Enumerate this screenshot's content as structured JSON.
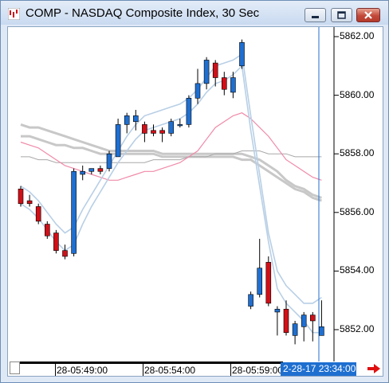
{
  "window": {
    "title": "COMP - NASDAQ Composite Index, 30 Sec",
    "buttons": {
      "minimize": "minimize-icon",
      "maximize": "maximize-icon",
      "close": "close-icon"
    }
  },
  "price_axis": {
    "labels": [
      "5862.00",
      "5860.00",
      "5858.00",
      "5856.00",
      "5854.00",
      "5852.00"
    ],
    "values": [
      5862,
      5860,
      5858,
      5856,
      5854,
      5852
    ]
  },
  "time_axis": {
    "labels": [
      "28-05:49:00",
      "28-05:54:00",
      "28-05:59:00"
    ],
    "cursor_time": "2-28-17 23:34:00"
  },
  "colors": {
    "up": "#1f6fd1",
    "down": "#d01018",
    "band": "#b8cfe6",
    "ma_pink": "#f08aa8",
    "ma_gray": "#c8c8c8",
    "cursor_line": "#1f6fd1",
    "accent_arrow": "#e01010"
  },
  "chart_data": {
    "type": "candlestick",
    "ylim": [
      5851.2,
      5862.3
    ],
    "candles": [
      {
        "o": 5856.8,
        "h": 5856.9,
        "l": 5856.2,
        "c": 5856.3
      },
      {
        "o": 5856.4,
        "h": 5856.6,
        "l": 5856.2,
        "c": 5856.3
      },
      {
        "o": 5856.2,
        "h": 5856.3,
        "l": 5855.6,
        "c": 5855.7
      },
      {
        "o": 5855.6,
        "h": 5855.7,
        "l": 5855.1,
        "c": 5855.2
      },
      {
        "o": 5855.3,
        "h": 5855.4,
        "l": 5854.6,
        "c": 5854.7
      },
      {
        "o": 5854.7,
        "h": 5854.9,
        "l": 5854.4,
        "c": 5854.5
      },
      {
        "o": 5854.6,
        "h": 5857.5,
        "l": 5854.5,
        "c": 5857.4
      },
      {
        "o": 5857.3,
        "h": 5857.6,
        "l": 5857.1,
        "c": 5857.4
      },
      {
        "o": 5857.4,
        "h": 5857.5,
        "l": 5857.3,
        "c": 5857.5
      },
      {
        "o": 5857.5,
        "h": 5857.6,
        "l": 5857.3,
        "c": 5857.4
      },
      {
        "o": 5857.5,
        "h": 5858.1,
        "l": 5857.4,
        "c": 5858.0
      },
      {
        "o": 5857.9,
        "h": 5859.2,
        "l": 5857.9,
        "c": 5859.0
      },
      {
        "o": 5859.0,
        "h": 5859.4,
        "l": 5858.7,
        "c": 5859.3
      },
      {
        "o": 5859.1,
        "h": 5859.5,
        "l": 5858.8,
        "c": 5859.3
      },
      {
        "o": 5859.0,
        "h": 5859.1,
        "l": 5858.4,
        "c": 5858.7
      },
      {
        "o": 5858.8,
        "h": 5859.0,
        "l": 5858.6,
        "c": 5858.7
      },
      {
        "o": 5858.8,
        "h": 5858.9,
        "l": 5858.4,
        "c": 5858.7
      },
      {
        "o": 5858.7,
        "h": 5859.2,
        "l": 5858.6,
        "c": 5859.1
      },
      {
        "o": 5859.0,
        "h": 5859.2,
        "l": 5858.9,
        "c": 5859.0
      },
      {
        "o": 5859.0,
        "h": 5860.0,
        "l": 5858.9,
        "c": 5859.9
      },
      {
        "o": 5859.9,
        "h": 5860.9,
        "l": 5859.7,
        "c": 5860.4
      },
      {
        "o": 5860.4,
        "h": 5861.3,
        "l": 5860.2,
        "c": 5861.2
      },
      {
        "o": 5861.1,
        "h": 5861.2,
        "l": 5860.3,
        "c": 5860.6
      },
      {
        "o": 5860.6,
        "h": 5860.8,
        "l": 5860.0,
        "c": 5860.2
      },
      {
        "o": 5860.1,
        "h": 5860.8,
        "l": 5859.9,
        "c": 5860.6
      },
      {
        "o": 5861.0,
        "h": 5861.9,
        "l": 5860.9,
        "c": 5861.8
      },
      {
        "o": 5852.8,
        "h": 5853.3,
        "l": 5852.7,
        "c": 5853.2
      },
      {
        "o": 5853.2,
        "h": 5855.1,
        "l": 5853.1,
        "c": 5854.1
      },
      {
        "o": 5854.3,
        "h": 5854.5,
        "l": 5852.8,
        "c": 5852.9
      },
      {
        "o": 5852.6,
        "h": 5852.8,
        "l": 5851.8,
        "c": 5852.7
      },
      {
        "o": 5852.7,
        "h": 5853.0,
        "l": 5851.8,
        "c": 5851.9
      },
      {
        "o": 5851.8,
        "h": 5852.3,
        "l": 5851.5,
        "c": 5852.2
      },
      {
        "o": 5852.1,
        "h": 5852.6,
        "l": 5851.6,
        "c": 5852.5
      },
      {
        "o": 5852.5,
        "h": 5852.6,
        "l": 5851.6,
        "c": 5852.3
      },
      {
        "o": 5851.8,
        "h": 5853.0,
        "l": 5851.8,
        "c": 5852.1
      }
    ],
    "bands": {
      "upper": [
        5856.9,
        5856.7,
        5856.4,
        5856.0,
        5855.6,
        5855.3,
        5855.5,
        5856.1,
        5856.6,
        5857.1,
        5857.6,
        5858.1,
        5858.6,
        5859.0,
        5859.3,
        5859.4,
        5859.5,
        5859.6,
        5859.7,
        5859.9,
        5860.2,
        5860.6,
        5861.0,
        5861.1,
        5861.2,
        5861.4,
        5859.3,
        5857.3,
        5855.3,
        5854.0,
        5853.5,
        5853.2,
        5852.9,
        5852.9,
        5853.1
      ],
      "lower": [
        5856.3,
        5856.1,
        5855.8,
        5855.4,
        5855.0,
        5854.7,
        5854.9,
        5855.6,
        5856.2,
        5856.7,
        5857.2,
        5857.7,
        5858.1,
        5858.5,
        5858.8,
        5858.9,
        5859.0,
        5859.1,
        5859.2,
        5859.4,
        5859.7,
        5860.1,
        5860.4,
        5860.5,
        5860.7,
        5861.0,
        5858.8,
        5856.9,
        5855.0,
        5853.4,
        5852.9,
        5852.6,
        5852.3,
        5851.9,
        5851.9
      ]
    },
    "ma_pink": [
      5858.4,
      5858.3,
      5858.2,
      5858.0,
      5857.8,
      5857.6,
      5857.5,
      5857.4,
      5857.3,
      5857.2,
      5857.1,
      5857.1,
      5857.2,
      5857.3,
      5857.4,
      5857.4,
      5857.5,
      5857.6,
      5857.7,
      5857.9,
      5858.1,
      5858.5,
      5858.9,
      5859.1,
      5859.3,
      5859.4,
      5859.2,
      5858.9,
      5858.6,
      5858.2,
      5857.8,
      5857.6,
      5857.4,
      5857.2,
      5857.1
    ],
    "ma_gray_1": [
      5859.0,
      5858.9,
      5858.9,
      5858.8,
      5858.7,
      5858.6,
      5858.5,
      5858.4,
      5858.3,
      5858.2,
      5858.1,
      5858.1,
      5858.1,
      5858.1,
      5858.1,
      5858.1,
      5858.0,
      5858.0,
      5858.0,
      5858.0,
      5858.0,
      5858.0,
      5858.0,
      5858.0,
      5858.0,
      5858.0,
      5857.9,
      5857.8,
      5857.6,
      5857.4,
      5857.1,
      5856.9,
      5856.8,
      5856.6,
      5856.5
    ],
    "ma_gray_2": [
      5858.6,
      5858.6,
      5858.5,
      5858.4,
      5858.3,
      5858.3,
      5858.2,
      5858.2,
      5858.1,
      5858.0,
      5858.0,
      5858.0,
      5858.0,
      5858.0,
      5858.0,
      5858.0,
      5857.9,
      5857.9,
      5857.9,
      5857.9,
      5857.9,
      5857.9,
      5857.9,
      5857.9,
      5857.9,
      5857.8,
      5857.8,
      5857.6,
      5857.4,
      5857.2,
      5857.0,
      5856.8,
      5856.7,
      5856.5,
      5856.4
    ],
    "ma_gray_3": [
      5857.9,
      5857.9,
      5857.8,
      5857.8,
      5857.7,
      5857.7,
      5857.7,
      5857.7,
      5857.7,
      5857.7,
      5857.7,
      5857.7,
      5857.7,
      5857.7,
      5857.7,
      5857.8,
      5857.8,
      5857.8,
      5857.8,
      5857.9,
      5857.9,
      5857.9,
      5858.0,
      5858.0,
      5858.0,
      5858.1,
      5858.1,
      5858.1,
      5858.0,
      5858.0,
      5858.0,
      5857.9,
      5857.9,
      5857.9,
      5857.9
    ]
  }
}
